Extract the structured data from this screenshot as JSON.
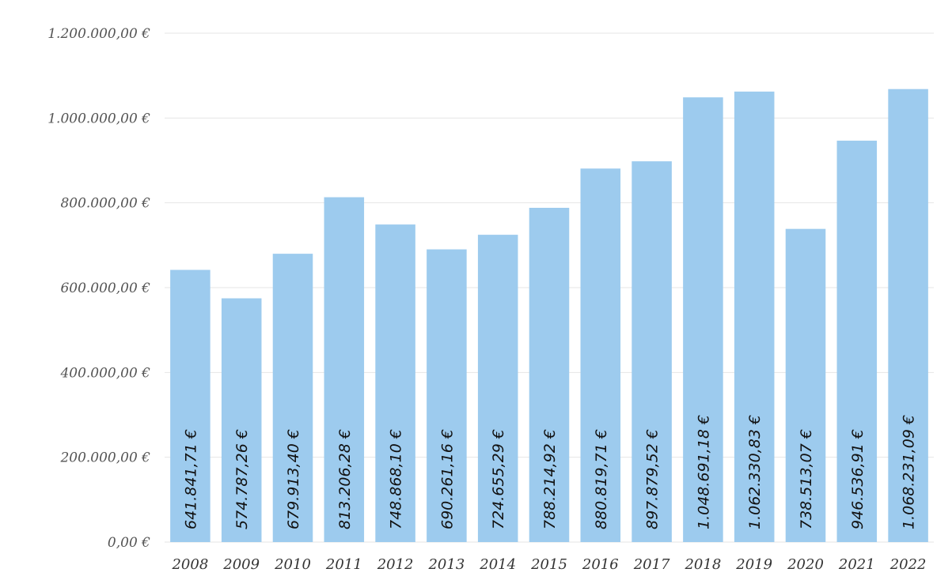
{
  "chart_data": {
    "type": "bar",
    "categories": [
      "2008",
      "2009",
      "2010",
      "2011",
      "2012",
      "2013",
      "2014",
      "2015",
      "2016",
      "2017",
      "2018",
      "2019",
      "2020",
      "2021",
      "2022"
    ],
    "values": [
      641841.71,
      574787.26,
      679913.4,
      813206.28,
      748868.1,
      690261.16,
      724655.29,
      788214.92,
      880819.71,
      897879.52,
      1048691.18,
      1062330.83,
      738513.07,
      946536.91,
      1068231.09
    ],
    "data_labels": [
      "641.841,71 €",
      "574.787,26 €",
      "679.913,40 €",
      "813.206,28 €",
      "748.868,10 €",
      "690.261,16 €",
      "724.655,29 €",
      "788.214,92 €",
      "880.819,71 €",
      "897.879,52 €",
      "1.048.691,18 €",
      "1.062.330,83 €",
      "738.513,07 €",
      "946.536,91 €",
      "1.068.231,09 €"
    ],
    "yticks": [
      0,
      200000,
      400000,
      600000,
      800000,
      1000000,
      1200000
    ],
    "ytick_labels": [
      "0,00 €",
      "200.000,00 €",
      "400.000,00 €",
      "600.000,00 €",
      "800.000,00 €",
      "1.000.000,00 €",
      "1.200.000,00 €"
    ],
    "ylim": [
      0,
      1200000
    ],
    "title": "",
    "xlabel": "",
    "ylabel": "",
    "grid": true,
    "legend": "none",
    "bar_color": "#9dcbee"
  }
}
